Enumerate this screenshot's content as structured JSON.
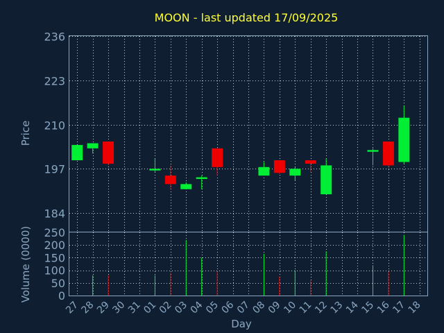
{
  "chart_data": {
    "type": "candlestick",
    "title": "MOON - last updated 17/09/2025",
    "xlabel": "Day",
    "price_ylabel": "Price",
    "volume_ylabel": "Volume (0000)",
    "price_ylim": [
      178.5,
      236
    ],
    "price_yticks": [
      "236",
      "223",
      "210",
      "197",
      "184"
    ],
    "volume_ylim": [
      0,
      250
    ],
    "volume_yticks": [
      "250",
      "200",
      "150",
      "100",
      "50",
      "0"
    ],
    "x_tick_labels": [
      "27",
      "28",
      "29",
      "30",
      "31",
      "01",
      "02",
      "03",
      "04",
      "05",
      "06",
      "07",
      "08",
      "09",
      "10",
      "11",
      "12",
      "13",
      "14",
      "15",
      "16",
      "17",
      "18"
    ],
    "grid": true,
    "up_color": "#00ee33",
    "down_color": "#ee0000",
    "candles": [
      {
        "day": "27",
        "open": 199.5,
        "high": 204.0,
        "low": 199.5,
        "close": 204.0,
        "volume": 0
      },
      {
        "day": "28",
        "open": 203.0,
        "high": 204.5,
        "low": 201.5,
        "close": 204.5,
        "volume": 80
      },
      {
        "day": "29",
        "open": 205.0,
        "high": 205.0,
        "low": 198.0,
        "close": 198.5,
        "volume": 80
      },
      {
        "day": "01",
        "open": 196.5,
        "high": 200.0,
        "low": 196.0,
        "close": 197.0,
        "volume": 80
      },
      {
        "day": "02",
        "open": 195.0,
        "high": 198.0,
        "low": 191.0,
        "close": 192.5,
        "volume": 90
      },
      {
        "day": "03",
        "open": 191.0,
        "high": 193.0,
        "low": 191.0,
        "close": 192.5,
        "volume": 220
      },
      {
        "day": "04",
        "open": 194.0,
        "high": 195.0,
        "low": 191.0,
        "close": 194.5,
        "volume": 150
      },
      {
        "day": "05",
        "open": 203.0,
        "high": 203.0,
        "low": 195.0,
        "close": 197.5,
        "volume": 95
      },
      {
        "day": "08",
        "open": 195.0,
        "high": 199.0,
        "low": 195.0,
        "close": 197.5,
        "volume": 165
      },
      {
        "day": "09",
        "open": 199.5,
        "high": 199.5,
        "low": 195.5,
        "close": 195.8,
        "volume": 75
      },
      {
        "day": "10",
        "open": 195.0,
        "high": 197.5,
        "low": 193.5,
        "close": 197.0,
        "volume": 100
      },
      {
        "day": "11",
        "open": 199.5,
        "high": 199.5,
        "low": 196.0,
        "close": 198.5,
        "volume": 60
      },
      {
        "day": "12",
        "open": 189.5,
        "high": 200.0,
        "low": 189.5,
        "close": 198.0,
        "volume": 175
      },
      {
        "day": "15",
        "open": 202.0,
        "high": 203.0,
        "low": 198.0,
        "close": 202.5,
        "volume": 120
      },
      {
        "day": "16",
        "open": 205.0,
        "high": 205.0,
        "low": 197.5,
        "close": 198.0,
        "volume": 95
      },
      {
        "day": "17",
        "open": 199.0,
        "high": 215.5,
        "low": 198.5,
        "close": 212.0,
        "volume": 240
      }
    ]
  }
}
